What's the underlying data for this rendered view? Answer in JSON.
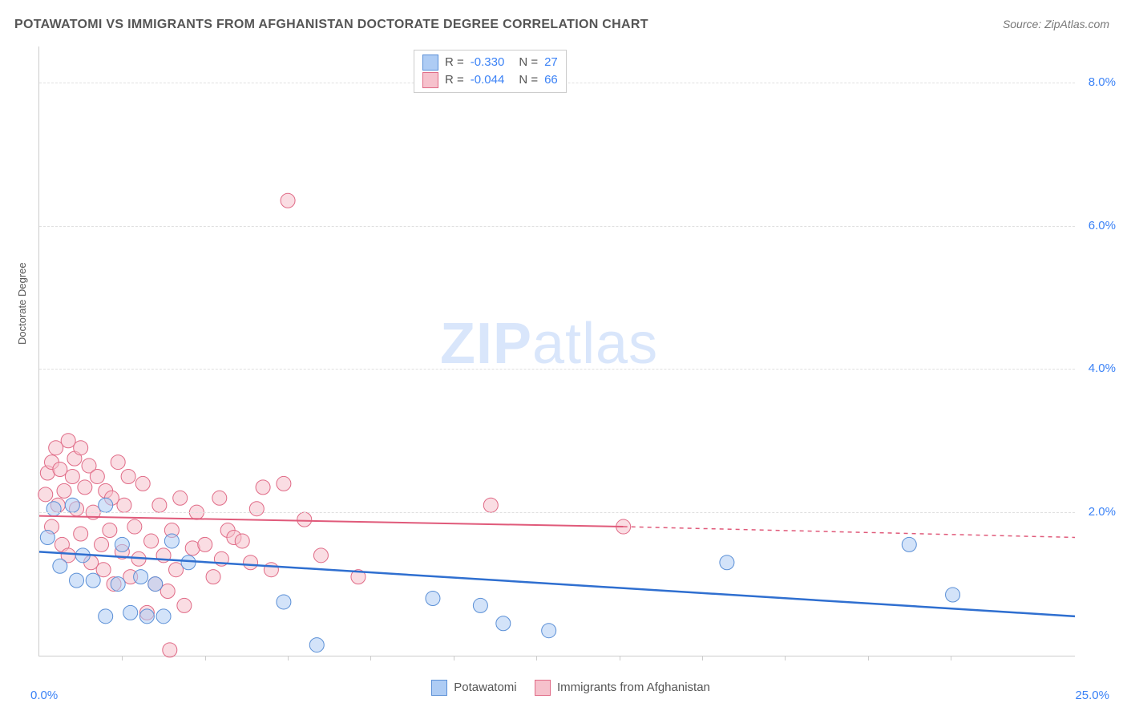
{
  "title": "POTAWATOMI VS IMMIGRANTS FROM AFGHANISTAN DOCTORATE DEGREE CORRELATION CHART",
  "source": "Source: ZipAtlas.com",
  "ylabel": "Doctorate Degree",
  "watermark_zip": "ZIP",
  "watermark_atlas": "atlas",
  "chart": {
    "type": "scatter-with-regression",
    "xlim": [
      0,
      25
    ],
    "ylim": [
      0,
      8.5
    ],
    "x_ticks_major": [
      0,
      25
    ],
    "x_ticks_minor": [
      2.0,
      4.0,
      6.0,
      8.0,
      10.0,
      12.0,
      14.0,
      16.0,
      18.0,
      20.0,
      22.0
    ],
    "x_tick_labels": {
      "0": "0.0%",
      "25": "25.0%"
    },
    "y_ticks": [
      2.0,
      4.0,
      6.0,
      8.0
    ],
    "y_tick_labels": {
      "2.0": "2.0%",
      "4.0": "4.0%",
      "6.0": "6.0%",
      "8.0": "8.0%"
    },
    "background_color": "#ffffff",
    "grid_color": "#e0e0e0",
    "marker_radius": 9,
    "marker_opacity": 0.55,
    "series": [
      {
        "name": "Potawatomi",
        "color_fill": "#aeccf4",
        "color_stroke": "#5a8fd6",
        "line_color": "#2f6fd0",
        "R": "-0.330",
        "N": "27",
        "points": [
          [
            0.35,
            2.05
          ],
          [
            0.2,
            1.65
          ],
          [
            0.8,
            2.1
          ],
          [
            0.9,
            1.05
          ],
          [
            1.6,
            2.1
          ],
          [
            1.05,
            1.4
          ],
          [
            1.3,
            1.05
          ],
          [
            2.0,
            1.55
          ],
          [
            1.9,
            1.0
          ],
          [
            2.45,
            1.1
          ],
          [
            1.6,
            0.55
          ],
          [
            2.2,
            0.6
          ],
          [
            2.6,
            0.55
          ],
          [
            2.8,
            1.0
          ],
          [
            3.0,
            0.55
          ],
          [
            3.2,
            1.6
          ],
          [
            3.6,
            1.3
          ],
          [
            5.9,
            0.75
          ],
          [
            6.7,
            0.15
          ],
          [
            9.5,
            0.8
          ],
          [
            10.65,
            0.7
          ],
          [
            11.2,
            0.45
          ],
          [
            12.3,
            0.35
          ],
          [
            16.6,
            1.3
          ],
          [
            21.0,
            1.55
          ],
          [
            22.05,
            0.85
          ],
          [
            0.5,
            1.25
          ]
        ],
        "regression": {
          "x0": 0,
          "y0": 1.45,
          "x1": 25,
          "y1": 0.55,
          "dash_from_x": 25
        }
      },
      {
        "name": "Immigrants from Afghanistan",
        "color_fill": "#f6c1cc",
        "color_stroke": "#e06a86",
        "line_color": "#e05a7a",
        "R": "-0.044",
        "N": "66",
        "points": [
          [
            0.15,
            2.25
          ],
          [
            0.2,
            2.55
          ],
          [
            0.3,
            2.7
          ],
          [
            0.3,
            1.8
          ],
          [
            0.4,
            2.9
          ],
          [
            0.45,
            2.1
          ],
          [
            0.5,
            2.6
          ],
          [
            0.55,
            1.55
          ],
          [
            0.6,
            2.3
          ],
          [
            0.7,
            3.0
          ],
          [
            0.7,
            1.4
          ],
          [
            0.8,
            2.5
          ],
          [
            0.85,
            2.75
          ],
          [
            0.9,
            2.05
          ],
          [
            1.0,
            2.9
          ],
          [
            1.0,
            1.7
          ],
          [
            1.1,
            2.35
          ],
          [
            1.2,
            2.65
          ],
          [
            1.25,
            1.3
          ],
          [
            1.3,
            2.0
          ],
          [
            1.4,
            2.5
          ],
          [
            1.5,
            1.55
          ],
          [
            1.55,
            1.2
          ],
          [
            1.6,
            2.3
          ],
          [
            1.7,
            1.75
          ],
          [
            1.75,
            2.2
          ],
          [
            1.8,
            1.0
          ],
          [
            1.9,
            2.7
          ],
          [
            2.0,
            1.45
          ],
          [
            2.05,
            2.1
          ],
          [
            2.15,
            2.5
          ],
          [
            2.2,
            1.1
          ],
          [
            2.3,
            1.8
          ],
          [
            2.4,
            1.35
          ],
          [
            2.5,
            2.4
          ],
          [
            2.6,
            0.6
          ],
          [
            2.7,
            1.6
          ],
          [
            2.8,
            1.0
          ],
          [
            2.9,
            2.1
          ],
          [
            3.0,
            1.4
          ],
          [
            3.1,
            0.9
          ],
          [
            3.15,
            0.08
          ],
          [
            3.2,
            1.75
          ],
          [
            3.3,
            1.2
          ],
          [
            3.4,
            2.2
          ],
          [
            3.5,
            0.7
          ],
          [
            3.7,
            1.5
          ],
          [
            3.8,
            2.0
          ],
          [
            4.0,
            1.55
          ],
          [
            4.2,
            1.1
          ],
          [
            4.35,
            2.2
          ],
          [
            4.4,
            1.35
          ],
          [
            4.55,
            1.75
          ],
          [
            4.7,
            1.65
          ],
          [
            4.9,
            1.6
          ],
          [
            5.1,
            1.3
          ],
          [
            5.25,
            2.05
          ],
          [
            5.4,
            2.35
          ],
          [
            5.6,
            1.2
          ],
          [
            5.9,
            2.4
          ],
          [
            6.0,
            6.35
          ],
          [
            6.4,
            1.9
          ],
          [
            6.8,
            1.4
          ],
          [
            7.7,
            1.1
          ],
          [
            10.9,
            2.1
          ],
          [
            14.1,
            1.8
          ]
        ],
        "regression": {
          "x0": 0,
          "y0": 1.95,
          "x1": 14.1,
          "y1": 1.8,
          "dash_from_x": 14.1,
          "dash_to_x": 25,
          "dash_to_y": 1.65
        }
      }
    ]
  },
  "bottom_legend": {
    "a_label": "Potawatomi",
    "b_label": "Immigrants from Afghanistan"
  }
}
